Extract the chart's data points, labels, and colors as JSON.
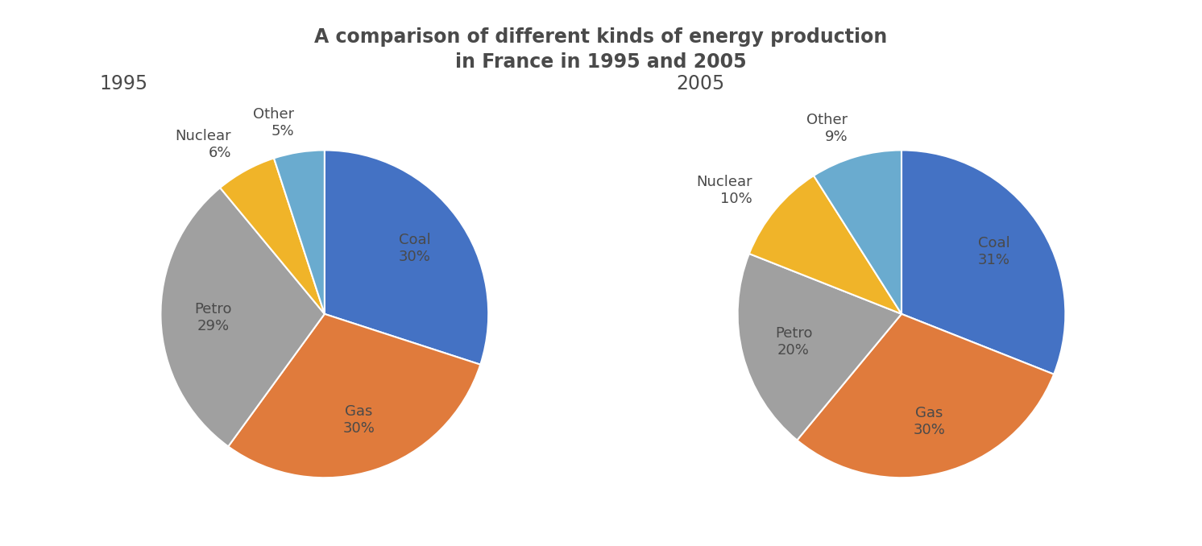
{
  "title": "A comparison of different kinds of energy production\nin France in 1995 and 2005",
  "title_fontsize": 17,
  "title_color": "#4a4a4a",
  "title_fontweight": "bold",
  "subtitle_1995": "1995",
  "subtitle_2005": "2005",
  "subtitle_fontsize": 17,
  "subtitle_color": "#4a4a4a",
  "pie1": {
    "labels": [
      "Coal",
      "Gas",
      "Petro",
      "Nuclear",
      "Other"
    ],
    "values": [
      30,
      30,
      29,
      6,
      5
    ],
    "colors": [
      "#4472c4",
      "#e07b3c",
      "#a0a0a0",
      "#f0b429",
      "#6aabcf"
    ],
    "startangle": 90,
    "pct_labels": [
      "30%",
      "30%",
      "29%",
      "6%",
      "5%"
    ],
    "outside": [
      false,
      false,
      false,
      true,
      true
    ]
  },
  "pie2": {
    "labels": [
      "Coal",
      "Gas",
      "Petro",
      "Nuclear",
      "Other"
    ],
    "values": [
      31,
      30,
      20,
      10,
      9
    ],
    "colors": [
      "#4472c4",
      "#e07b3c",
      "#a0a0a0",
      "#f0b429",
      "#6aabcf"
    ],
    "startangle": 90,
    "pct_labels": [
      "31%",
      "30%",
      "20%",
      "10%",
      "9%"
    ],
    "outside": [
      false,
      false,
      false,
      true,
      true
    ]
  },
  "label_fontsize": 13,
  "label_color": "#4a4a4a",
  "background_color": "#ffffff",
  "wedge_linewidth": 1.5,
  "wedge_edgecolor": "#ffffff",
  "inside_dist": 0.68,
  "outside_dist": 1.18
}
